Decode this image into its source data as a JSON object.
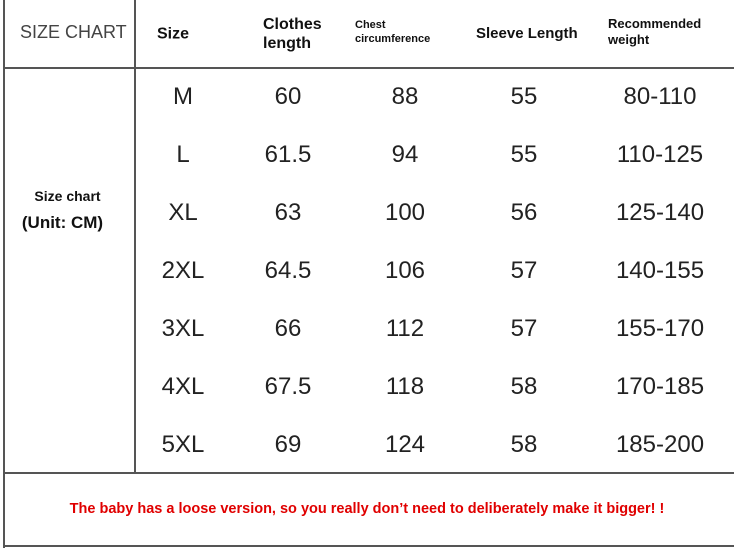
{
  "title": "SIZE CHART",
  "side_label": {
    "line1": "Size chart",
    "line2": "(Unit: CM)"
  },
  "headers": [
    "Size",
    "Clothes length",
    "Chest circumference",
    "Sleeve Length",
    "Recommended weight"
  ],
  "header_lines": [
    [
      "Size"
    ],
    [
      "Clothes",
      "length"
    ],
    [
      "Chest",
      "circumference"
    ],
    [
      "Sleeve Length"
    ],
    [
      "Recommended",
      "weight"
    ]
  ],
  "rows": [
    [
      "M",
      "60",
      "88",
      "55",
      "80-110"
    ],
    [
      "L",
      "61.5",
      "94",
      "55",
      "110-125"
    ],
    [
      "XL",
      "63",
      "100",
      "56",
      "125-140"
    ],
    [
      "2XL",
      "64.5",
      "106",
      "57",
      "140-155"
    ],
    [
      "3XL",
      "66",
      "112",
      "57",
      "155-170"
    ],
    [
      "4XL",
      "67.5",
      "118",
      "58",
      "170-185"
    ],
    [
      "5XL",
      "69",
      "124",
      "58",
      "185-200"
    ]
  ],
  "note": "The baby has a loose version, so you really don’t need to deliberately make it bigger! !",
  "colors": {
    "note": "#e00000",
    "border": "#555555"
  }
}
